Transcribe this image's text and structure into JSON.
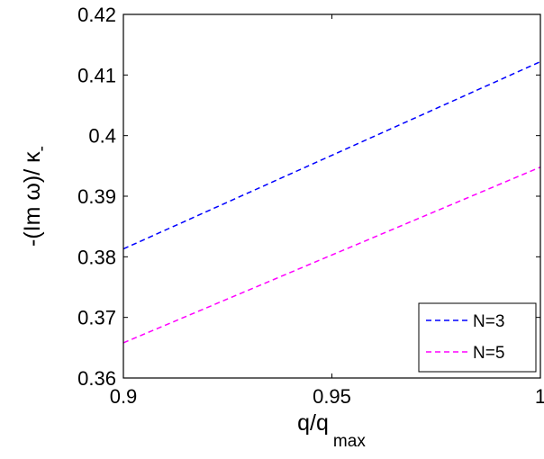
{
  "chart_data": {
    "type": "line",
    "title": "",
    "xlabel": "q/q",
    "xlabel_sub": "max",
    "ylabel": "-(Im ω)/ κ",
    "ylabel_sub": "-",
    "xlim": [
      0.9,
      1.0
    ],
    "ylim": [
      0.36,
      0.42
    ],
    "x_ticks": [
      0.9,
      0.95,
      1.0
    ],
    "x_tick_labels": [
      "0.9",
      "0.95",
      "1"
    ],
    "y_ticks": [
      0.36,
      0.37,
      0.38,
      0.39,
      0.4,
      0.41,
      0.42
    ],
    "y_tick_labels": [
      "0.36",
      "0.37",
      "0.38",
      "0.39",
      "0.4",
      "0.41",
      "0.42"
    ],
    "grid": false,
    "legend_position": "bottom-right",
    "series": [
      {
        "name": "N=3",
        "color": "#0000ff",
        "style": "dashed",
        "x": [
          0.9,
          1.0
        ],
        "y": [
          0.3813,
          0.4122
        ]
      },
      {
        "name": "N=5",
        "color": "#ff00ff",
        "style": "dashed",
        "x": [
          0.9,
          1.0
        ],
        "y": [
          0.3658,
          0.3948
        ]
      }
    ]
  }
}
